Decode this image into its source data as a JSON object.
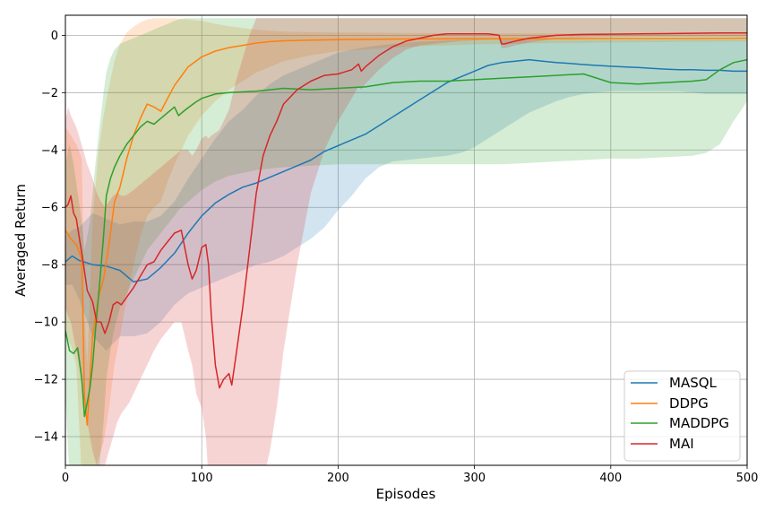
{
  "chart_data": {
    "type": "line",
    "title": "",
    "xlabel": "Episodes",
    "ylabel": "Averaged Return",
    "xlim": [
      0,
      500
    ],
    "ylim": [
      -15,
      0.7
    ],
    "xticks": [
      0,
      100,
      200,
      300,
      400,
      500
    ],
    "yticks": [
      -14,
      -12,
      -10,
      -8,
      -6,
      -4,
      -2,
      0
    ],
    "grid": true,
    "legend_position": "bottom-right",
    "series": [
      {
        "name": "MASQL",
        "color": "#1f77b4",
        "x": [
          0,
          5,
          10,
          20,
          30,
          40,
          50,
          60,
          70,
          80,
          90,
          100,
          110,
          120,
          130,
          140,
          150,
          160,
          170,
          180,
          190,
          200,
          210,
          220,
          230,
          240,
          250,
          260,
          270,
          280,
          290,
          300,
          310,
          320,
          330,
          340,
          350,
          360,
          370,
          380,
          390,
          400,
          410,
          420,
          430,
          440,
          450,
          460,
          470,
          480,
          490,
          500
        ],
        "y": [
          -7.9,
          -7.7,
          -7.85,
          -8.0,
          -8.05,
          -8.2,
          -8.6,
          -8.5,
          -8.1,
          -7.6,
          -6.9,
          -6.3,
          -5.85,
          -5.55,
          -5.3,
          -5.15,
          -4.95,
          -4.75,
          -4.55,
          -4.35,
          -4.05,
          -3.85,
          -3.65,
          -3.45,
          -3.15,
          -2.85,
          -2.55,
          -2.25,
          -1.95,
          -1.65,
          -1.45,
          -1.25,
          -1.05,
          -0.95,
          -0.9,
          -0.85,
          -0.9,
          -0.95,
          -0.98,
          -1.02,
          -1.05,
          -1.08,
          -1.1,
          -1.12,
          -1.15,
          -1.18,
          -1.2,
          -1.2,
          -1.22,
          -1.22,
          -1.25,
          -1.25
        ],
        "lower": [
          -8.7,
          -8.7,
          -9.2,
          -10.5,
          -11.0,
          -10.5,
          -10.5,
          -10.4,
          -10.0,
          -9.4,
          -9.0,
          -8.8,
          -8.6,
          -8.4,
          -8.2,
          -8.0,
          -7.9,
          -7.7,
          -7.4,
          -7.1,
          -6.7,
          -6.1,
          -5.6,
          -5.0,
          -4.6,
          -4.4,
          -4.35,
          -4.3,
          -4.25,
          -4.2,
          -4.1,
          -3.9,
          -3.6,
          -3.3,
          -3.0,
          -2.7,
          -2.5,
          -2.3,
          -2.15,
          -2.05,
          -2.0,
          -1.95,
          -1.95,
          -1.95,
          -1.95,
          -1.95,
          -1.95,
          -2.0,
          -2.05,
          -2.05,
          -2.05,
          -2.05
        ],
        "upper": [
          -7.0,
          -6.8,
          -6.7,
          -6.2,
          -6.4,
          -6.6,
          -6.5,
          -6.5,
          -6.3,
          -5.8,
          -5.0,
          -4.3,
          -3.6,
          -3.0,
          -2.6,
          -2.1,
          -1.7,
          -1.4,
          -1.2,
          -1.0,
          -0.8,
          -0.6,
          -0.5,
          -0.42,
          -0.35,
          -0.3,
          -0.26,
          -0.22,
          -0.2,
          -0.18,
          -0.17,
          -0.16,
          -0.15,
          -0.15,
          -0.15,
          -0.15,
          -0.15,
          -0.15,
          -0.15,
          -0.15,
          -0.15,
          -0.15,
          -0.15,
          -0.15,
          -0.15,
          -0.15,
          -0.15,
          -0.15,
          -0.15,
          -0.15,
          -0.15,
          -0.15
        ]
      },
      {
        "name": "DDPG",
        "color": "#ff7f0e",
        "x": [
          0,
          4,
          8,
          12,
          14,
          16,
          18,
          20,
          24,
          28,
          32,
          36,
          40,
          45,
          50,
          55,
          60,
          65,
          70,
          75,
          80,
          90,
          100,
          110,
          120,
          130,
          140,
          150,
          160,
          180,
          200,
          250,
          300,
          350,
          400,
          450,
          500
        ],
        "y": [
          -6.8,
          -7.1,
          -7.3,
          -7.8,
          -12.6,
          -13.6,
          -12.0,
          -10.5,
          -9.2,
          -8.5,
          -7.3,
          -5.8,
          -5.3,
          -4.3,
          -3.5,
          -2.9,
          -2.4,
          -2.5,
          -2.65,
          -2.2,
          -1.75,
          -1.1,
          -0.75,
          -0.55,
          -0.43,
          -0.35,
          -0.27,
          -0.22,
          -0.19,
          -0.17,
          -0.15,
          -0.13,
          -0.12,
          -0.12,
          -0.11,
          -0.11,
          -0.1
        ],
        "lower": [
          -10.5,
          -10.8,
          -11.5,
          -15.5,
          -15.5,
          -15.5,
          -15.5,
          -15.5,
          -14.8,
          -14.2,
          -13.0,
          -11.5,
          -10.5,
          -9.2,
          -8.0,
          -7.0,
          -6.3,
          -6.0,
          -5.8,
          -5.1,
          -4.5,
          -3.5,
          -2.8,
          -2.3,
          -1.9,
          -1.6,
          -1.3,
          -1.1,
          -0.9,
          -0.7,
          -0.55,
          -0.4,
          -0.32,
          -0.28,
          -0.25,
          -0.23,
          -0.22
        ],
        "upper": [
          -3.2,
          -3.5,
          -3.8,
          -4.3,
          -9.8,
          -11.5,
          -9.0,
          -6.5,
          -4.2,
          -2.8,
          -1.8,
          -0.9,
          -0.3,
          0.1,
          0.3,
          0.45,
          0.55,
          0.6,
          0.6,
          0.6,
          0.6,
          0.55,
          0.5,
          0.4,
          0.32,
          0.25,
          0.2,
          0.16,
          0.13,
          0.11,
          0.1,
          0.08,
          0.07,
          0.07,
          0.06,
          0.06,
          0.05
        ]
      },
      {
        "name": "MADDPG",
        "color": "#2ca02c",
        "x": [
          0,
          3,
          6,
          9,
          12,
          14,
          16,
          18,
          20,
          22,
          25,
          28,
          30,
          33,
          36,
          40,
          45,
          50,
          55,
          60,
          65,
          70,
          75,
          80,
          83,
          88,
          95,
          100,
          110,
          120,
          140,
          160,
          180,
          200,
          220,
          240,
          260,
          280,
          300,
          320,
          340,
          360,
          380,
          400,
          420,
          440,
          460,
          470,
          480,
          490,
          500
        ],
        "y": [
          -10.3,
          -11.0,
          -11.1,
          -10.9,
          -12.0,
          -13.3,
          -12.8,
          -12.3,
          -11.5,
          -10.3,
          -8.7,
          -7.0,
          -5.6,
          -5.0,
          -4.6,
          -4.2,
          -3.8,
          -3.5,
          -3.2,
          -3.0,
          -3.1,
          -2.9,
          -2.7,
          -2.5,
          -2.8,
          -2.6,
          -2.35,
          -2.2,
          -2.05,
          -2.0,
          -1.95,
          -1.85,
          -1.9,
          -1.85,
          -1.8,
          -1.65,
          -1.6,
          -1.6,
          -1.55,
          -1.5,
          -1.45,
          -1.4,
          -1.35,
          -1.65,
          -1.7,
          -1.65,
          -1.6,
          -1.55,
          -1.2,
          -0.95,
          -0.85
        ],
        "lower": [
          -12.5,
          -15.5,
          -15.5,
          -15.5,
          -15.5,
          -15.5,
          -15.5,
          -15.5,
          -15.5,
          -15.5,
          -15.0,
          -13.5,
          -12.0,
          -11.0,
          -10.2,
          -9.5,
          -9.0,
          -8.5,
          -8.0,
          -7.5,
          -7.2,
          -6.9,
          -6.6,
          -6.3,
          -6.1,
          -5.9,
          -5.6,
          -5.4,
          -5.1,
          -4.9,
          -4.7,
          -4.6,
          -4.55,
          -4.5,
          -4.5,
          -4.5,
          -4.5,
          -4.5,
          -4.5,
          -4.5,
          -4.45,
          -4.4,
          -4.35,
          -4.3,
          -4.3,
          -4.25,
          -4.2,
          -4.1,
          -3.8,
          -3.0,
          -2.3
        ],
        "upper": [
          -4.5,
          -3.8,
          -4.5,
          -5.5,
          -6.5,
          -7.5,
          -7.0,
          -6.5,
          -5.5,
          -4.5,
          -3.2,
          -2.0,
          -1.3,
          -0.8,
          -0.5,
          -0.3,
          -0.2,
          -0.1,
          0.0,
          0.1,
          0.2,
          0.3,
          0.4,
          0.5,
          0.55,
          0.6,
          0.6,
          0.6,
          0.6,
          0.6,
          0.6,
          0.6,
          0.6,
          0.6,
          0.6,
          0.6,
          0.6,
          0.6,
          0.6,
          0.6,
          0.6,
          0.6,
          0.6,
          0.6,
          0.6,
          0.6,
          0.6,
          0.6,
          0.6,
          0.6,
          0.6
        ]
      },
      {
        "name": "MAI",
        "color": "#d62728",
        "x": [
          0,
          2,
          4,
          6,
          8,
          10,
          13,
          16,
          20,
          23,
          26,
          29,
          32,
          35,
          38,
          41,
          44,
          47,
          50,
          55,
          60,
          65,
          70,
          75,
          80,
          85,
          90,
          93,
          96,
          100,
          103,
          105,
          107,
          110,
          113,
          116,
          120,
          122,
          125,
          130,
          135,
          140,
          145,
          150,
          155,
          160,
          170,
          180,
          190,
          200,
          210,
          215,
          217,
          220,
          230,
          240,
          250,
          260,
          270,
          280,
          290,
          300,
          310,
          318,
          320,
          322,
          330,
          340,
          360,
          380,
          400,
          420,
          440,
          460,
          480,
          500
        ],
        "y": [
          -6.0,
          -5.9,
          -5.6,
          -6.2,
          -6.4,
          -7.0,
          -7.9,
          -8.9,
          -9.3,
          -10.0,
          -10.0,
          -10.4,
          -10.0,
          -9.4,
          -9.3,
          -9.4,
          -9.2,
          -9.0,
          -8.8,
          -8.4,
          -8.0,
          -7.9,
          -7.5,
          -7.2,
          -6.9,
          -6.8,
          -8.0,
          -8.5,
          -8.2,
          -7.4,
          -7.3,
          -8.0,
          -9.8,
          -11.5,
          -12.3,
          -12.0,
          -11.8,
          -12.2,
          -11.2,
          -9.5,
          -7.5,
          -5.5,
          -4.2,
          -3.5,
          -3.0,
          -2.4,
          -1.9,
          -1.6,
          -1.4,
          -1.35,
          -1.2,
          -1.0,
          -1.25,
          -1.1,
          -0.7,
          -0.4,
          -0.2,
          -0.1,
          0.0,
          0.05,
          0.05,
          0.05,
          0.05,
          0.0,
          -0.3,
          -0.3,
          -0.2,
          -0.1,
          0.0,
          0.03,
          0.04,
          0.05,
          0.06,
          0.07,
          0.08,
          0.08
        ],
        "lower": [
          -9.5,
          -9.8,
          -10.0,
          -10.5,
          -11.0,
          -11.5,
          -12.5,
          -13.5,
          -14.5,
          -15.0,
          -15.2,
          -15.0,
          -14.5,
          -14.0,
          -13.5,
          -13.2,
          -13.0,
          -12.8,
          -12.5,
          -12.0,
          -11.5,
          -11.0,
          -10.6,
          -10.3,
          -10.0,
          -10.0,
          -11.0,
          -11.5,
          -12.5,
          -13.0,
          -14.0,
          -15.5,
          -15.5,
          -15.5,
          -15.5,
          -15.5,
          -15.5,
          -15.5,
          -15.5,
          -15.5,
          -15.5,
          -15.5,
          -15.5,
          -14.5,
          -13.0,
          -11.0,
          -8.0,
          -5.5,
          -4.0,
          -3.0,
          -2.2,
          -1.8,
          -1.9,
          -1.7,
          -1.2,
          -0.8,
          -0.5,
          -0.35,
          -0.3,
          -0.25,
          -0.2,
          -0.18,
          -0.15,
          -0.15,
          -0.45,
          -0.45,
          -0.35,
          -0.25,
          -0.12,
          -0.08,
          -0.06,
          -0.05,
          -0.05,
          -0.05,
          -0.05,
          -0.05
        ],
        "upper": [
          -3.0,
          -2.5,
          -2.8,
          -3.0,
          -3.2,
          -3.5,
          -4.0,
          -4.5,
          -5.0,
          -5.5,
          -5.8,
          -6.0,
          -5.8,
          -5.6,
          -5.5,
          -5.6,
          -5.6,
          -5.5,
          -5.4,
          -5.2,
          -5.0,
          -4.8,
          -4.6,
          -4.4,
          -4.2,
          -4.0,
          -4.0,
          -4.2,
          -4.0,
          -3.6,
          -3.5,
          -3.6,
          -3.5,
          -3.4,
          -3.3,
          -3.0,
          -2.6,
          -2.2,
          -1.6,
          -0.8,
          0.0,
          0.6,
          0.6,
          0.6,
          0.6,
          0.6,
          0.6,
          0.6,
          0.6,
          0.6,
          0.6,
          0.6,
          0.6,
          0.6,
          0.6,
          0.6,
          0.6,
          0.6,
          0.6,
          0.6,
          0.6,
          0.6,
          0.6,
          0.6,
          0.6,
          0.6,
          0.6,
          0.6,
          0.6,
          0.6,
          0.6,
          0.6,
          0.6,
          0.6,
          0.6,
          0.6
        ]
      }
    ]
  }
}
